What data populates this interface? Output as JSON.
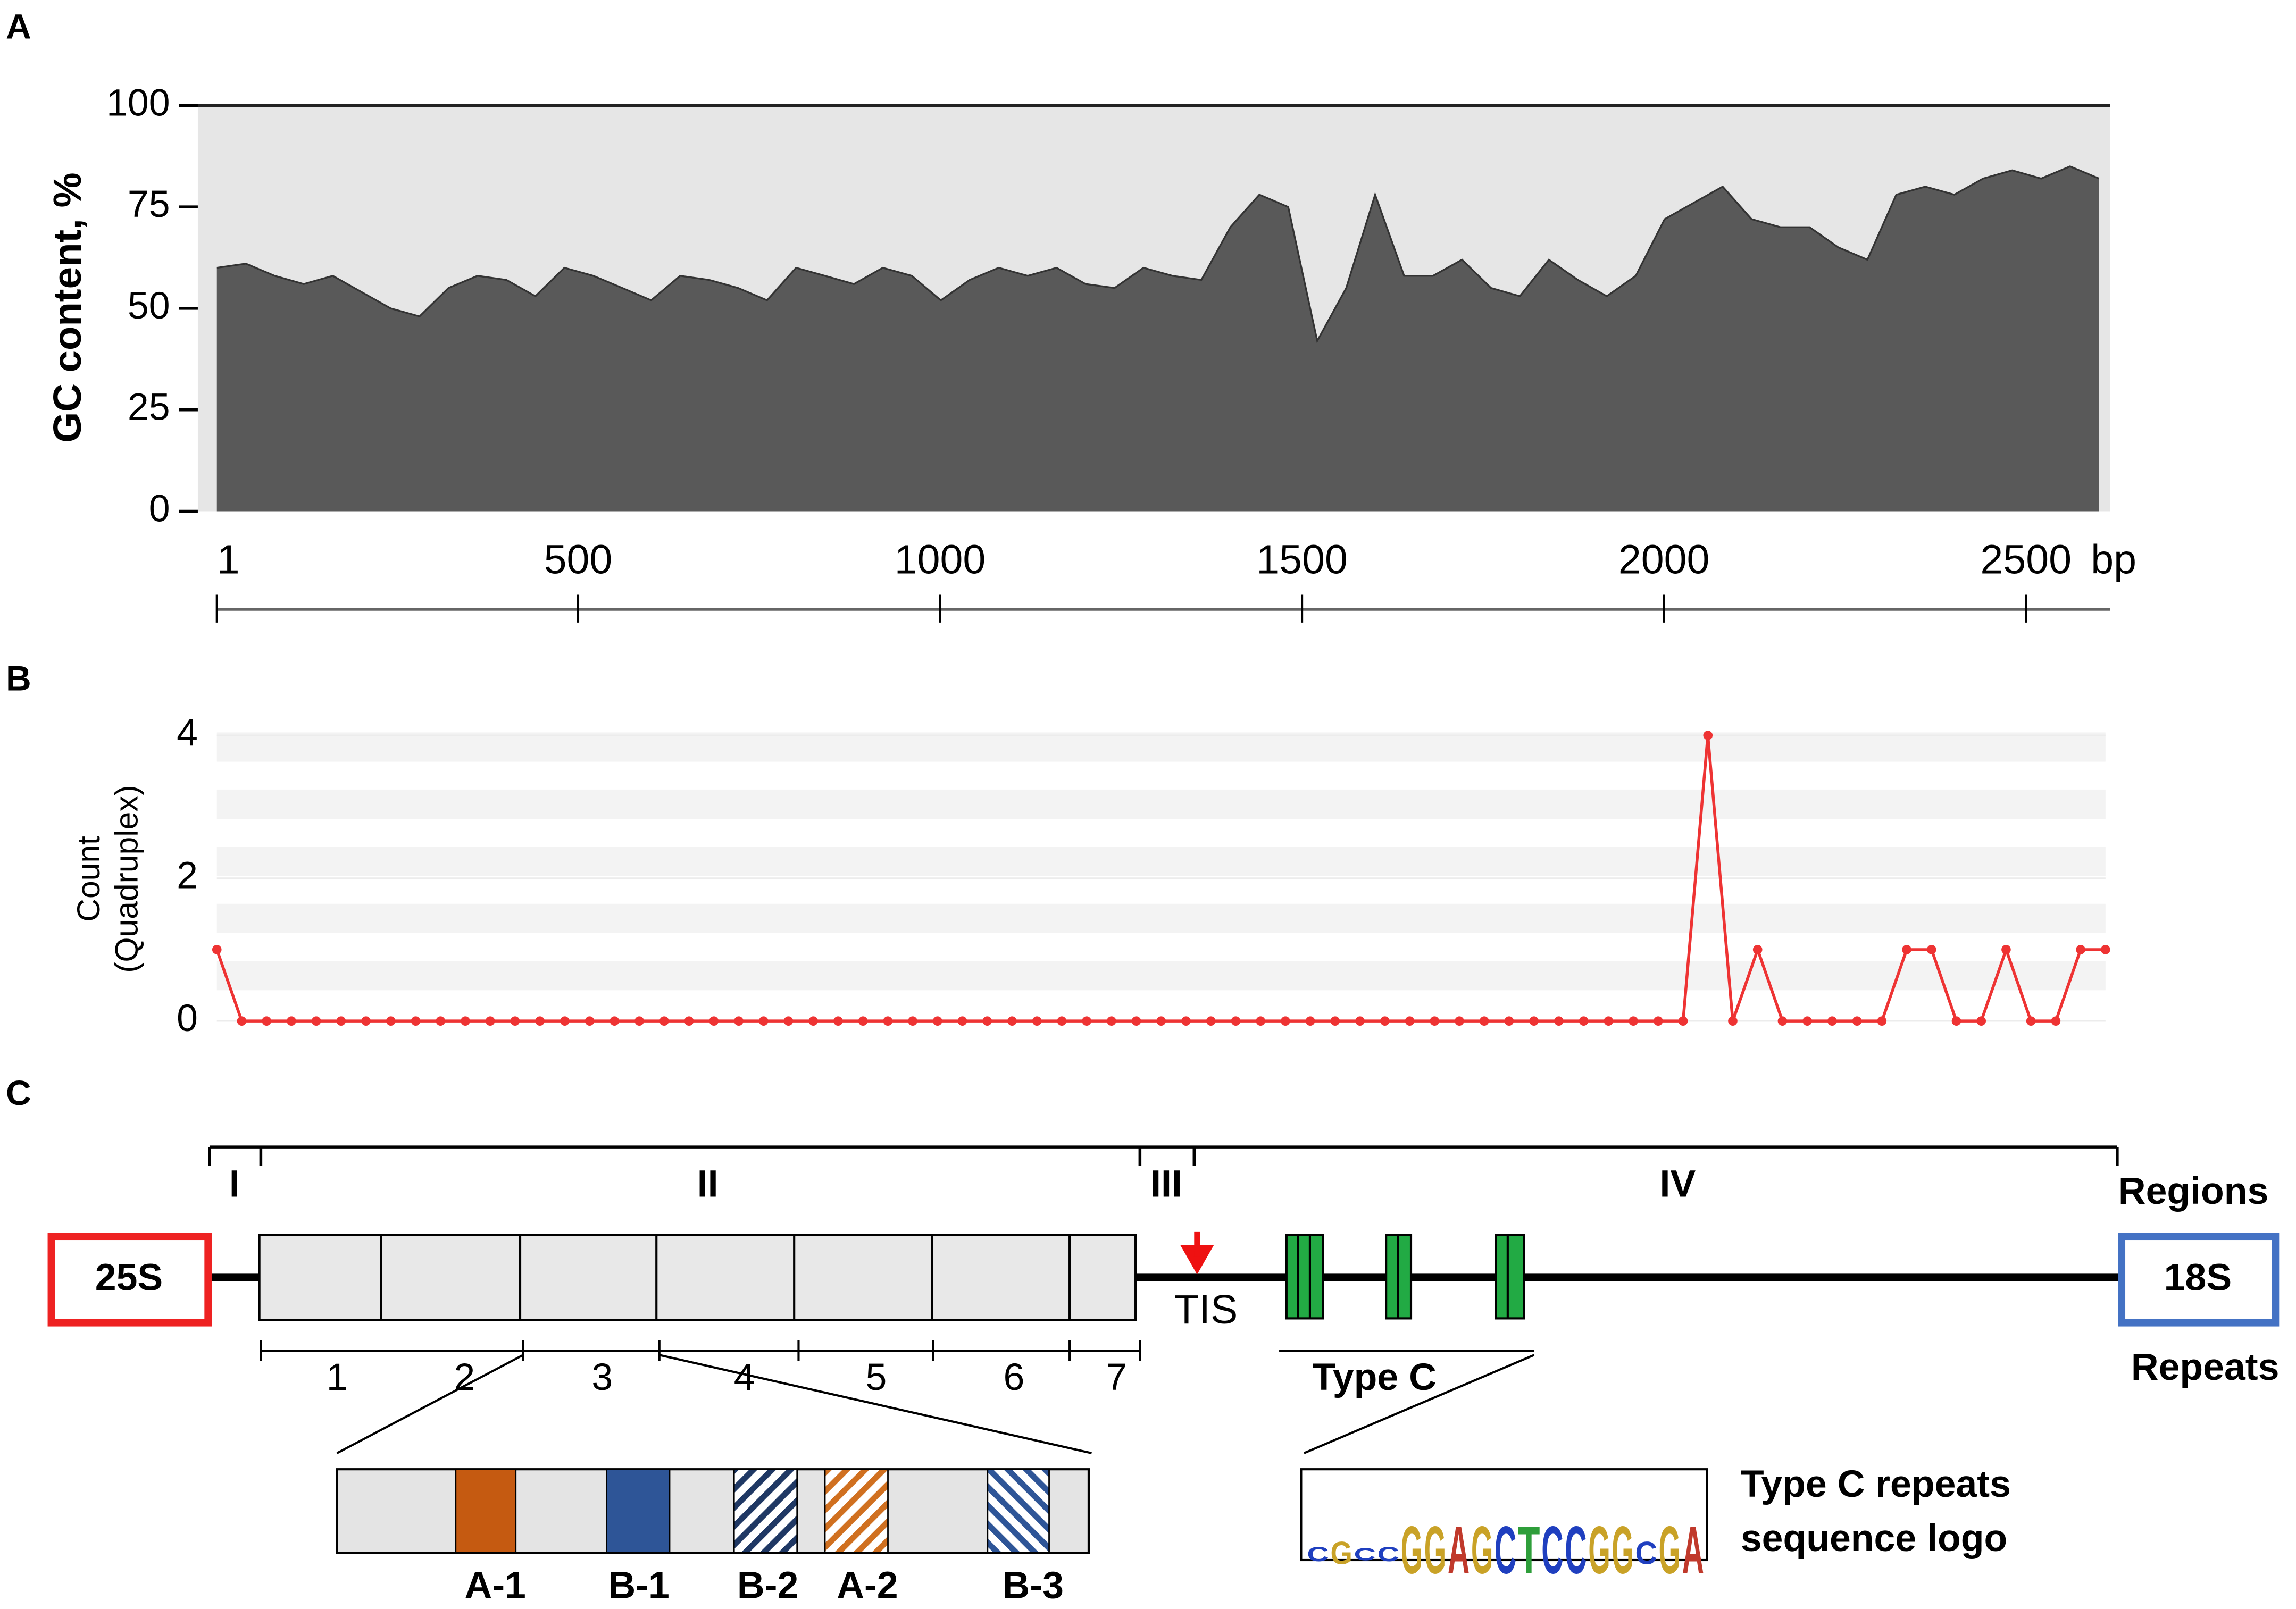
{
  "panel_labels": [
    "A",
    "B",
    "C"
  ],
  "chart_data": [
    {
      "type": "area",
      "ylabel": "GC content, %",
      "xlabel": "bp",
      "color": "#595959",
      "x": [
        1,
        41,
        81,
        121,
        161,
        201,
        241,
        281,
        321,
        361,
        401,
        441,
        481,
        521,
        561,
        601,
        641,
        681,
        721,
        761,
        801,
        841,
        881,
        921,
        961,
        1001,
        1041,
        1081,
        1121,
        1161,
        1201,
        1241,
        1281,
        1321,
        1361,
        1401,
        1441,
        1481,
        1521,
        1561,
        1601,
        1641,
        1681,
        1721,
        1761,
        1801,
        1841,
        1881,
        1921,
        1961,
        2001,
        2041,
        2081,
        2121,
        2161,
        2201,
        2241,
        2281,
        2321,
        2361,
        2401,
        2441,
        2481,
        2521,
        2561,
        2601
      ],
      "values": [
        60,
        61,
        58,
        56,
        58,
        54,
        50,
        48,
        55,
        58,
        57,
        53,
        60,
        58,
        55,
        52,
        58,
        57,
        55,
        52,
        60,
        58,
        56,
        60,
        58,
        52,
        57,
        60,
        58,
        60,
        56,
        55,
        60,
        58,
        57,
        70,
        78,
        75,
        42,
        55,
        78,
        58,
        58,
        62,
        55,
        53,
        62,
        57,
        53,
        58,
        72,
        76,
        80,
        72,
        70,
        70,
        65,
        62,
        78,
        80,
        78,
        82,
        84,
        82,
        85,
        82
      ],
      "xlim": [
        1,
        2616
      ],
      "xticks": [
        1,
        500,
        1000,
        1500,
        2000,
        2500
      ],
      "ylim": [
        0,
        100
      ],
      "yticks": [
        0,
        25,
        50,
        75,
        100
      ]
    },
    {
      "type": "line",
      "ylabel": [
        "Count",
        "(Quadruplex)"
      ],
      "color": "#ee3333",
      "values": [
        1,
        0,
        0,
        0,
        0,
        0,
        0,
        0,
        0,
        0,
        0,
        0,
        0,
        0,
        0,
        0,
        0,
        0,
        0,
        0,
        0,
        0,
        0,
        0,
        0,
        0,
        0,
        0,
        0,
        0,
        0,
        0,
        0,
        0,
        0,
        0,
        0,
        0,
        0,
        0,
        0,
        0,
        0,
        0,
        0,
        0,
        0,
        0,
        0,
        0,
        0,
        0,
        0,
        0,
        0,
        0,
        0,
        0,
        0,
        0,
        4,
        0,
        1,
        0,
        0,
        0,
        0,
        0,
        1,
        1,
        0,
        0,
        1,
        0,
        0,
        1,
        1
      ],
      "ylim": [
        0,
        4
      ],
      "yticks": [
        0,
        2,
        4
      ]
    }
  ],
  "diagram": {
    "regions": [
      "I",
      "II",
      "III",
      "IV"
    ],
    "regions_label": "Regions",
    "left_gene": "25S",
    "right_gene": "18S",
    "repeats_label": "Repeats",
    "tis": "TIS",
    "segments": [
      "1",
      "2",
      "3",
      "4",
      "5",
      "6",
      "7"
    ],
    "type_c": "Type C",
    "elements": [
      "A-1",
      "B-1",
      "B-2",
      "A-2",
      "B-3"
    ],
    "logo_letters": [
      "C",
      "G",
      "C",
      "C",
      "G",
      "G",
      "A",
      "G",
      "C",
      "T",
      "C",
      "C",
      "G",
      "G",
      "C",
      "G",
      "A"
    ],
    "logo_caption": [
      "Type C repeats",
      "sequence logo"
    ]
  }
}
